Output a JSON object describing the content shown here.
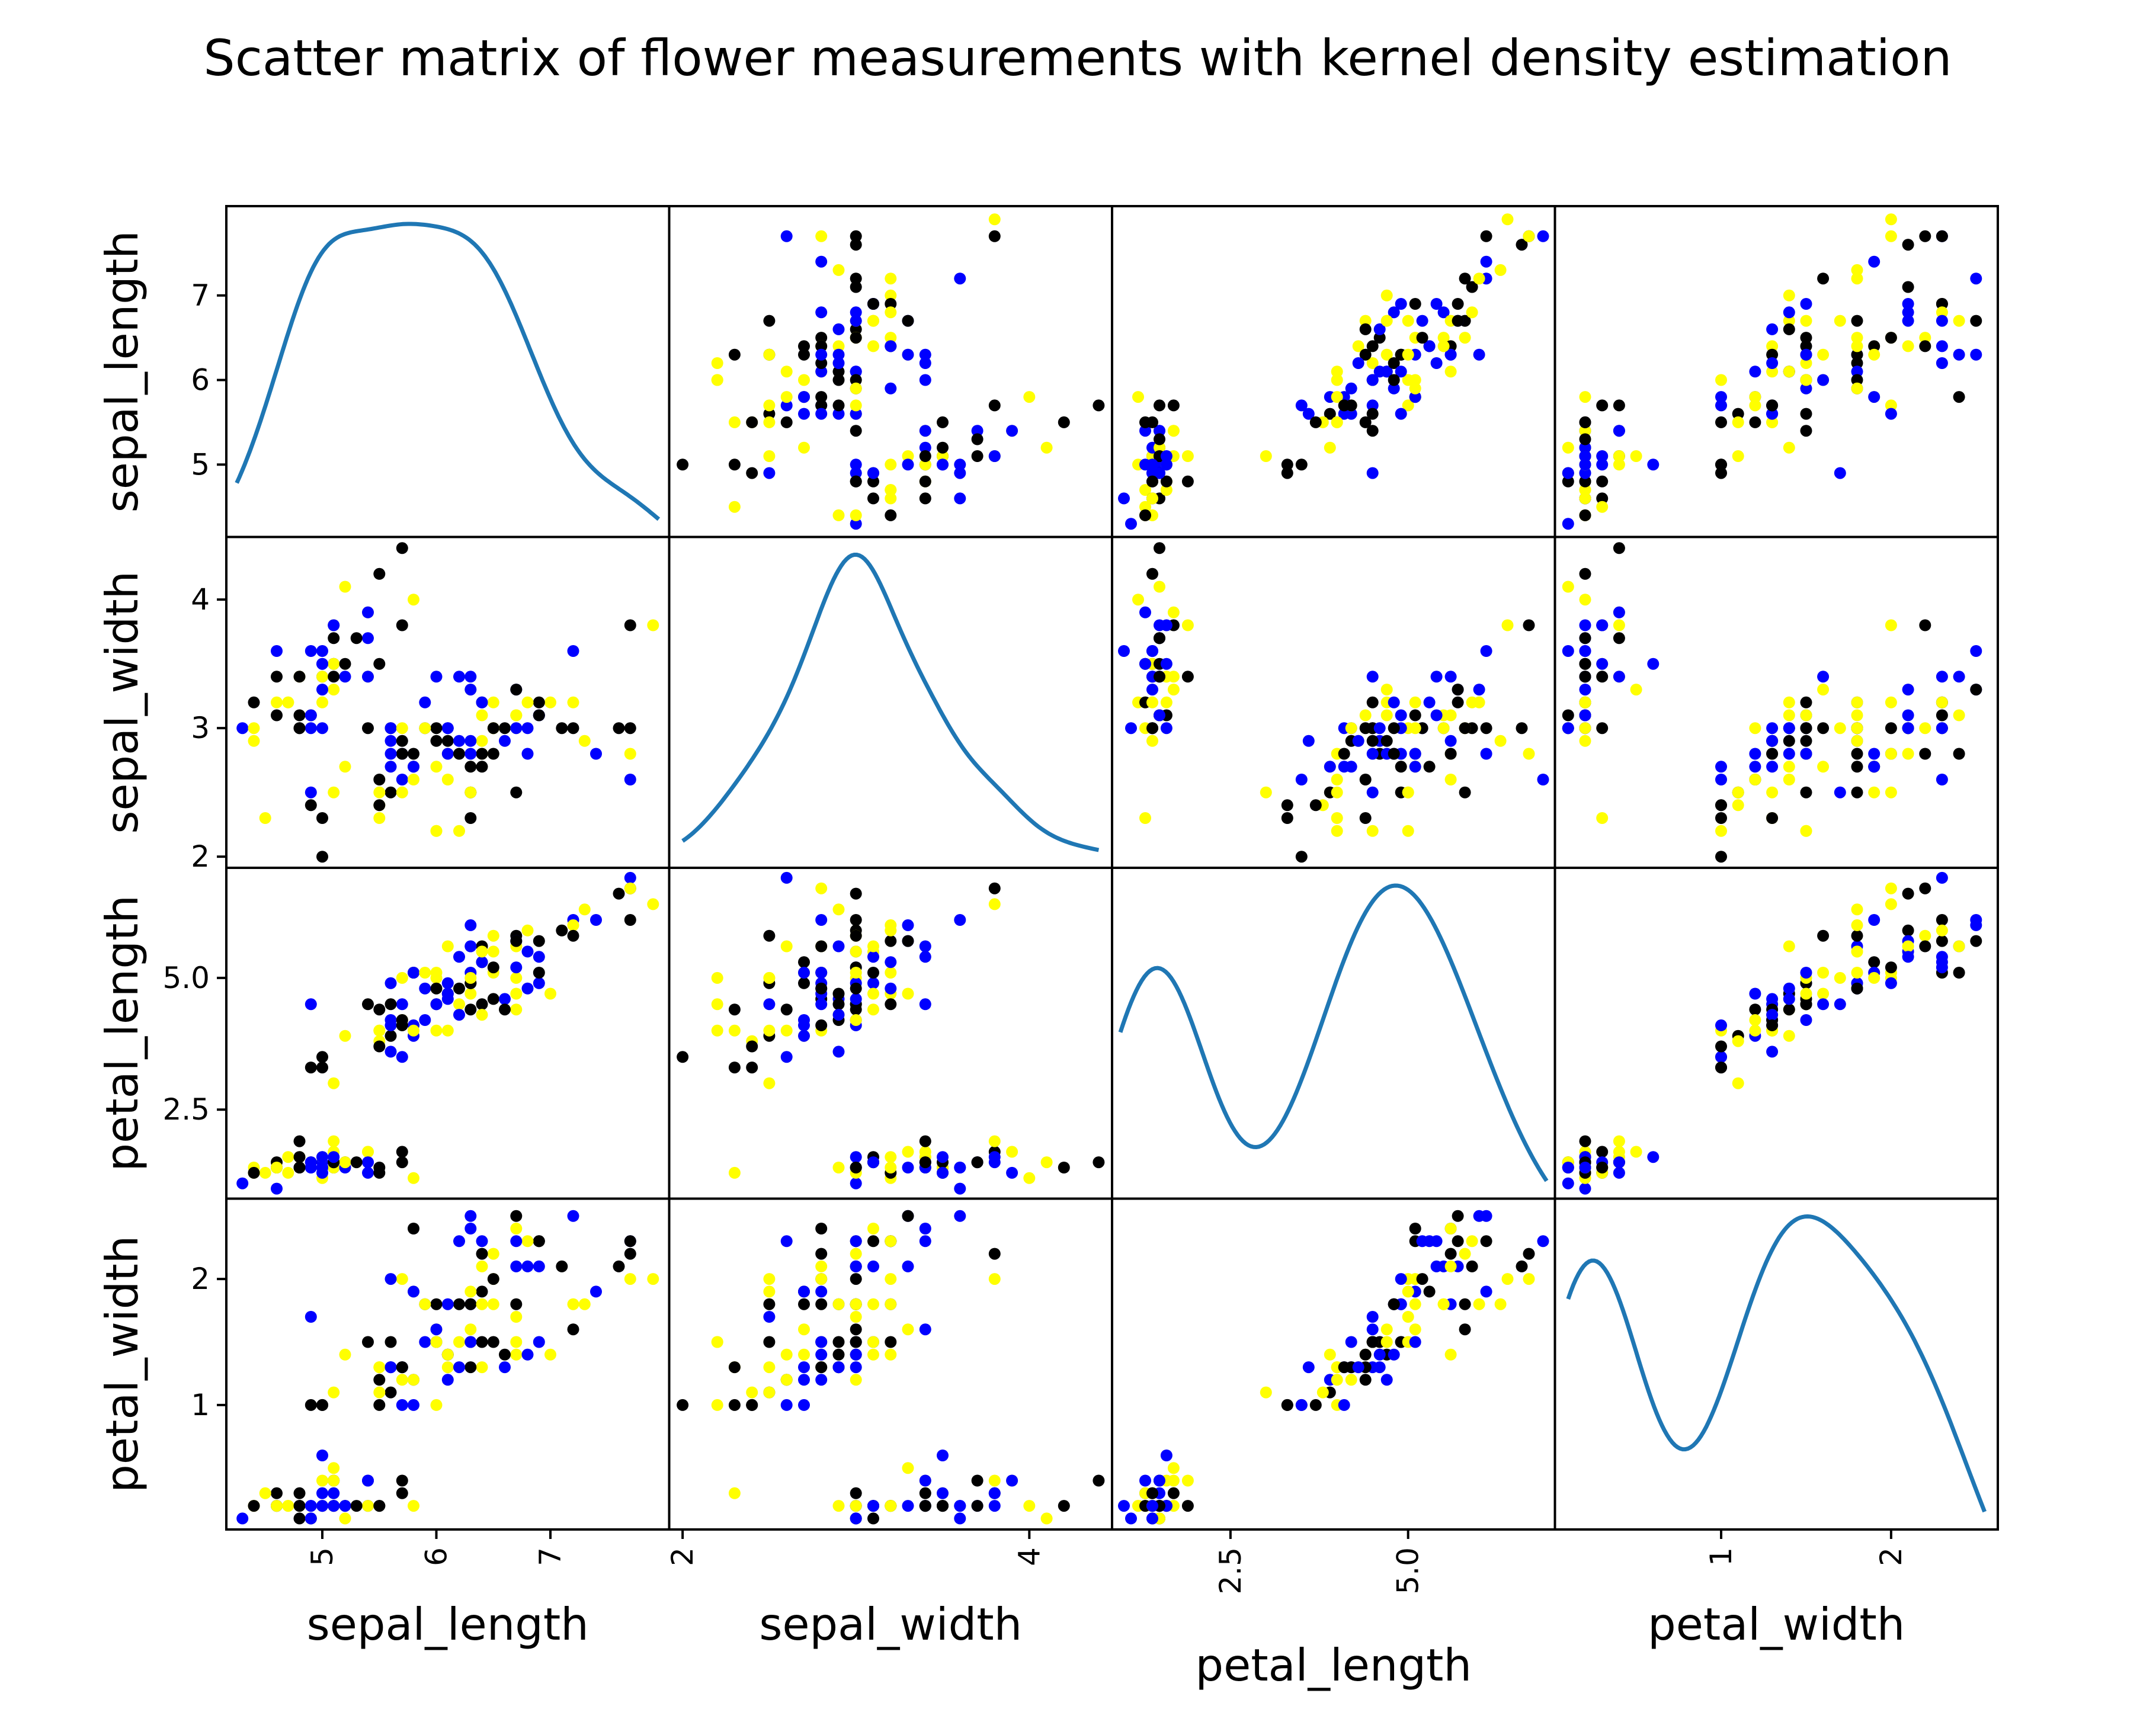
{
  "chart_data": {
    "type": "scatter",
    "title": "Scatter matrix of flower measurements with kernel density estimation",
    "variables": [
      "sepal_length",
      "sepal_width",
      "petal_length",
      "petal_width"
    ],
    "diagonal": "kde",
    "grid": false,
    "legend": "none",
    "point_colors": [
      "#000000",
      "#0000ff",
      "#ffff00"
    ],
    "kde_color": "#1f77b4",
    "axes": {
      "sepal_length": {
        "range": [
          4.2,
          8.0
        ],
        "ticks": [
          5,
          6,
          7
        ],
        "tick_labels": [
          "5",
          "6",
          "7"
        ]
      },
      "sepal_width": {
        "range": [
          1.95,
          4.45
        ],
        "ticks": [
          2,
          3,
          4
        ],
        "tick_labels": [
          "2",
          "3",
          "4"
        ],
        "x_tick_labels": [
          "2",
          "4"
        ]
      },
      "petal_length": {
        "range": [
          0.9,
          7.0
        ],
        "ticks": [
          2.5,
          5.0
        ],
        "tick_labels": [
          "2.5",
          "5.0"
        ]
      },
      "petal_width": {
        "range": [
          0.05,
          2.6
        ],
        "ticks": [
          1,
          2
        ],
        "tick_labels": [
          "1",
          "2"
        ]
      }
    },
    "samples": [
      [
        5.1,
        3.5,
        1.4,
        0.2
      ],
      [
        4.9,
        3.0,
        1.4,
        0.2
      ],
      [
        4.7,
        3.2,
        1.3,
        0.2
      ],
      [
        4.6,
        3.1,
        1.5,
        0.2
      ],
      [
        5.0,
        3.6,
        1.4,
        0.2
      ],
      [
        5.4,
        3.9,
        1.7,
        0.4
      ],
      [
        4.6,
        3.4,
        1.4,
        0.3
      ],
      [
        5.0,
        3.4,
        1.5,
        0.2
      ],
      [
        4.4,
        2.9,
        1.4,
        0.2
      ],
      [
        4.9,
        3.1,
        1.5,
        0.1
      ],
      [
        5.4,
        3.7,
        1.5,
        0.2
      ],
      [
        4.8,
        3.4,
        1.6,
        0.2
      ],
      [
        4.8,
        3.0,
        1.4,
        0.1
      ],
      [
        4.3,
        3.0,
        1.1,
        0.1
      ],
      [
        5.8,
        4.0,
        1.2,
        0.2
      ],
      [
        5.7,
        4.4,
        1.5,
        0.4
      ],
      [
        5.4,
        3.9,
        1.3,
        0.4
      ],
      [
        5.1,
        3.5,
        1.4,
        0.3
      ],
      [
        5.7,
        3.8,
        1.7,
        0.3
      ],
      [
        5.1,
        3.8,
        1.5,
        0.3
      ],
      [
        5.4,
        3.4,
        1.7,
        0.2
      ],
      [
        5.1,
        3.7,
        1.5,
        0.4
      ],
      [
        4.6,
        3.6,
        1.0,
        0.2
      ],
      [
        5.1,
        3.3,
        1.7,
        0.5
      ],
      [
        4.8,
        3.4,
        1.9,
        0.2
      ],
      [
        5.0,
        3.0,
        1.6,
        0.2
      ],
      [
        5.0,
        3.4,
        1.6,
        0.4
      ],
      [
        5.2,
        3.5,
        1.5,
        0.2
      ],
      [
        5.2,
        3.4,
        1.4,
        0.2
      ],
      [
        4.7,
        3.2,
        1.6,
        0.2
      ],
      [
        4.8,
        3.1,
        1.6,
        0.2
      ],
      [
        5.4,
        3.4,
        1.5,
        0.4
      ],
      [
        5.2,
        4.1,
        1.5,
        0.1
      ],
      [
        5.5,
        4.2,
        1.4,
        0.2
      ],
      [
        4.9,
        3.1,
        1.5,
        0.2
      ],
      [
        5.0,
        3.2,
        1.2,
        0.2
      ],
      [
        5.5,
        3.5,
        1.3,
        0.2
      ],
      [
        4.9,
        3.6,
        1.4,
        0.1
      ],
      [
        4.4,
        3.0,
        1.3,
        0.2
      ],
      [
        5.1,
        3.4,
        1.5,
        0.2
      ],
      [
        5.0,
        3.5,
        1.3,
        0.3
      ],
      [
        4.5,
        2.3,
        1.3,
        0.3
      ],
      [
        4.4,
        3.2,
        1.3,
        0.2
      ],
      [
        5.0,
        3.5,
        1.6,
        0.6
      ],
      [
        5.1,
        3.8,
        1.9,
        0.4
      ],
      [
        4.8,
        3.0,
        1.4,
        0.3
      ],
      [
        5.1,
        3.8,
        1.6,
        0.2
      ],
      [
        4.6,
        3.2,
        1.4,
        0.2
      ],
      [
        5.3,
        3.7,
        1.5,
        0.2
      ],
      [
        5.0,
        3.3,
        1.4,
        0.2
      ],
      [
        7.0,
        3.2,
        4.7,
        1.4
      ],
      [
        6.4,
        3.2,
        4.5,
        1.5
      ],
      [
        6.9,
        3.1,
        4.9,
        1.5
      ],
      [
        5.5,
        2.3,
        4.0,
        1.3
      ],
      [
        6.5,
        2.8,
        4.6,
        1.5
      ],
      [
        5.7,
        2.8,
        4.5,
        1.3
      ],
      [
        6.3,
        3.3,
        4.7,
        1.6
      ],
      [
        4.9,
        2.4,
        3.3,
        1.0
      ],
      [
        6.6,
        2.9,
        4.6,
        1.3
      ],
      [
        5.2,
        2.7,
        3.9,
        1.4
      ],
      [
        5.0,
        2.0,
        3.5,
        1.0
      ],
      [
        5.9,
        3.0,
        4.2,
        1.5
      ],
      [
        6.0,
        2.2,
        4.0,
        1.0
      ],
      [
        6.1,
        2.9,
        4.7,
        1.4
      ],
      [
        5.6,
        2.9,
        3.6,
        1.3
      ],
      [
        6.7,
        3.1,
        4.4,
        1.4
      ],
      [
        5.6,
        3.0,
        4.5,
        1.5
      ],
      [
        5.8,
        2.7,
        4.1,
        1.0
      ],
      [
        6.2,
        2.2,
        4.5,
        1.5
      ],
      [
        5.6,
        2.5,
        3.9,
        1.1
      ],
      [
        5.9,
        3.2,
        4.8,
        1.8
      ],
      [
        6.1,
        2.8,
        4.0,
        1.3
      ],
      [
        6.3,
        2.5,
        4.9,
        1.5
      ],
      [
        6.1,
        2.8,
        4.7,
        1.2
      ],
      [
        6.4,
        2.9,
        4.3,
        1.3
      ],
      [
        6.6,
        3.0,
        4.4,
        1.4
      ],
      [
        6.8,
        2.8,
        4.8,
        1.4
      ],
      [
        6.7,
        3.0,
        5.0,
        1.7
      ],
      [
        6.0,
        2.9,
        4.5,
        1.5
      ],
      [
        5.7,
        2.6,
        3.5,
        1.0
      ],
      [
        5.5,
        2.4,
        3.8,
        1.1
      ],
      [
        5.5,
        2.4,
        3.7,
        1.0
      ],
      [
        5.8,
        2.7,
        3.9,
        1.2
      ],
      [
        6.0,
        2.7,
        5.1,
        1.6
      ],
      [
        5.4,
        3.0,
        4.5,
        1.5
      ],
      [
        6.0,
        3.4,
        4.5,
        1.6
      ],
      [
        6.7,
        3.1,
        4.7,
        1.5
      ],
      [
        6.3,
        2.3,
        4.4,
        1.3
      ],
      [
        5.6,
        3.0,
        4.1,
        1.3
      ],
      [
        5.5,
        2.5,
        4.0,
        1.3
      ],
      [
        5.5,
        2.6,
        4.4,
        1.2
      ],
      [
        6.1,
        3.0,
        4.6,
        1.4
      ],
      [
        5.8,
        2.6,
        4.0,
        1.2
      ],
      [
        5.0,
        2.3,
        3.3,
        1.0
      ],
      [
        5.6,
        2.7,
        4.2,
        1.3
      ],
      [
        5.7,
        3.0,
        4.2,
        1.2
      ],
      [
        5.7,
        2.9,
        4.2,
        1.3
      ],
      [
        6.2,
        2.9,
        4.3,
        1.3
      ],
      [
        5.1,
        2.5,
        3.0,
        1.1
      ],
      [
        5.7,
        2.8,
        4.1,
        1.3
      ],
      [
        6.3,
        3.3,
        6.0,
        2.5
      ],
      [
        5.8,
        2.7,
        5.1,
        1.9
      ],
      [
        7.1,
        3.0,
        5.9,
        2.1
      ],
      [
        6.3,
        2.9,
        5.6,
        1.8
      ],
      [
        6.5,
        3.0,
        5.8,
        2.2
      ],
      [
        7.6,
        3.0,
        6.6,
        2.1
      ],
      [
        4.9,
        2.5,
        4.5,
        1.7
      ],
      [
        7.3,
        2.9,
        6.3,
        1.8
      ],
      [
        6.7,
        2.5,
        5.8,
        1.8
      ],
      [
        7.2,
        3.6,
        6.1,
        2.5
      ],
      [
        6.5,
        3.2,
        5.1,
        2.0
      ],
      [
        6.4,
        2.7,
        5.3,
        1.9
      ],
      [
        6.8,
        3.0,
        5.5,
        2.1
      ],
      [
        5.7,
        2.5,
        5.0,
        2.0
      ],
      [
        5.8,
        2.8,
        5.1,
        2.4
      ],
      [
        6.4,
        3.2,
        5.3,
        2.3
      ],
      [
        6.5,
        3.0,
        5.5,
        1.8
      ],
      [
        7.7,
        3.8,
        6.7,
        2.2
      ],
      [
        7.7,
        2.6,
        6.9,
        2.3
      ],
      [
        6.0,
        2.2,
        5.0,
        1.5
      ],
      [
        6.9,
        3.2,
        5.7,
        2.3
      ],
      [
        5.6,
        2.8,
        4.9,
        2.0
      ],
      [
        7.7,
        2.8,
        6.7,
        2.0
      ],
      [
        6.3,
        2.7,
        4.9,
        1.8
      ],
      [
        6.7,
        3.3,
        5.7,
        2.1
      ],
      [
        7.2,
        3.2,
        6.0,
        1.8
      ],
      [
        6.2,
        2.8,
        4.8,
        1.8
      ],
      [
        6.1,
        3.0,
        4.9,
        1.8
      ],
      [
        6.4,
        2.8,
        5.6,
        2.1
      ],
      [
        7.2,
        3.0,
        5.8,
        1.6
      ],
      [
        7.4,
        2.8,
        6.1,
        1.9
      ],
      [
        7.9,
        3.8,
        6.4,
        2.0
      ],
      [
        6.4,
        2.8,
        5.6,
        2.2
      ],
      [
        6.3,
        2.8,
        5.1,
        1.5
      ],
      [
        6.1,
        2.6,
        5.6,
        1.4
      ],
      [
        7.7,
        3.0,
        6.1,
        2.3
      ],
      [
        6.3,
        3.4,
        5.6,
        2.4
      ],
      [
        6.4,
        3.1,
        5.5,
        1.8
      ],
      [
        6.0,
        3.0,
        4.8,
        1.8
      ],
      [
        6.9,
        3.1,
        5.4,
        2.1
      ],
      [
        6.7,
        3.1,
        5.6,
        2.4
      ],
      [
        6.9,
        3.1,
        5.1,
        2.3
      ],
      [
        5.8,
        2.7,
        5.1,
        1.9
      ],
      [
        6.8,
        3.2,
        5.9,
        2.3
      ],
      [
        6.7,
        3.3,
        5.7,
        2.5
      ],
      [
        6.7,
        3.0,
        5.2,
        2.3
      ],
      [
        6.3,
        2.5,
        5.0,
        1.9
      ],
      [
        6.5,
        3.0,
        5.2,
        2.0
      ],
      [
        6.2,
        3.4,
        5.4,
        2.3
      ],
      [
        5.9,
        3.0,
        5.1,
        1.8
      ]
    ]
  }
}
